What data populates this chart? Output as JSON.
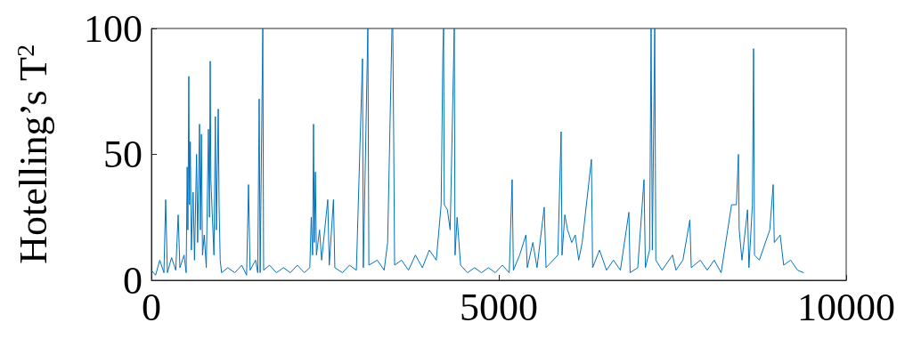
{
  "chart_data": {
    "type": "line",
    "ylabel": "Hotelling’s T$^{2}$",
    "xlim": [
      0,
      10000
    ],
    "xticks": [
      0,
      5000,
      10000
    ],
    "ylim": [
      0,
      100
    ],
    "yticks": [
      0,
      50,
      100
    ],
    "grid": false,
    "marker": "none",
    "line_style": "solid",
    "series": [
      {
        "color": "#0072bd",
        "x": [
          0,
          60,
          120,
          180,
          205,
          230,
          290,
          350,
          385,
          410,
          470,
          500,
          515,
          525,
          538,
          548,
          560,
          575,
          600,
          620,
          650,
          665,
          692,
          705,
          720,
          735,
          760,
          790,
          820,
          835,
          846,
          856,
          870,
          900,
          920,
          935,
          962,
          974,
          990,
          1010,
          1100,
          1200,
          1300,
          1370,
          1397,
          1420,
          1500,
          1530,
          1551,
          1565,
          1603,
          1615,
          1700,
          1800,
          1900,
          2000,
          2100,
          2200,
          2280,
          2300,
          2320,
          2333,
          2345,
          2360,
          2375,
          2420,
          2450,
          2538,
          2560,
          2620,
          2640,
          2750,
          2850,
          2950,
          3038,
          3050,
          3115,
          3130,
          3250,
          3350,
          3400,
          3462,
          3474,
          3486,
          3500,
          3600,
          3700,
          3800,
          3900,
          4000,
          4100,
          4170,
          4195,
          4205,
          4215,
          4260,
          4300,
          4359,
          4370,
          4400,
          4450,
          4550,
          4650,
          4750,
          4850,
          4950,
          5050,
          5150,
          5192,
          5210,
          5300,
          5390,
          5410,
          5490,
          5550,
          5654,
          5680,
          5850,
          5897,
          5910,
          5950,
          5990,
          6050,
          6100,
          6150,
          6200,
          6333,
          6350,
          6450,
          6550,
          6650,
          6750,
          6872,
          6890,
          7000,
          7090,
          7110,
          7170,
          7192,
          7210,
          7244,
          7260,
          7350,
          7500,
          7550,
          7650,
          7750,
          7770,
          7900,
          8000,
          8100,
          8200,
          8350,
          8420,
          8449,
          8460,
          8500,
          8580,
          8600,
          8650,
          8667,
          8680,
          8750,
          8900,
          8949,
          8965,
          9050,
          9100,
          9200,
          9300,
          9385
        ],
        "values": [
          4,
          2,
          8,
          3,
          32,
          3,
          9,
          4,
          26,
          5,
          10,
          3,
          45,
          20,
          81,
          30,
          55,
          12,
          35,
          8,
          50,
          15,
          62,
          20,
          58,
          10,
          18,
          5,
          60,
          25,
          87,
          40,
          30,
          10,
          65,
          20,
          68,
          30,
          8,
          3,
          5,
          3,
          6,
          2,
          38,
          4,
          8,
          3,
          72,
          3,
          100,
          4,
          6,
          3,
          5,
          3,
          6,
          3,
          5,
          25,
          10,
          62,
          15,
          43,
          10,
          20,
          8,
          32,
          6,
          32,
          5,
          3,
          6,
          4,
          88,
          5,
          100,
          6,
          8,
          4,
          15,
          100,
          100,
          60,
          6,
          8,
          4,
          10,
          5,
          12,
          8,
          30,
          90,
          100,
          30,
          28,
          20,
          100,
          10,
          25,
          6,
          3,
          5,
          3,
          5,
          3,
          6,
          3,
          40,
          4,
          10,
          18,
          5,
          15,
          5,
          29,
          5,
          10,
          59,
          10,
          26,
          20,
          15,
          18,
          8,
          15,
          48,
          5,
          12,
          4,
          8,
          4,
          27,
          3,
          5,
          40,
          5,
          12,
          100,
          12,
          100,
          8,
          4,
          10,
          4,
          8,
          24,
          5,
          8,
          4,
          8,
          3,
          30,
          30,
          50,
          20,
          8,
          28,
          5,
          30,
          92,
          10,
          8,
          20,
          38,
          15,
          18,
          6,
          8,
          4,
          3
        ]
      }
    ]
  }
}
